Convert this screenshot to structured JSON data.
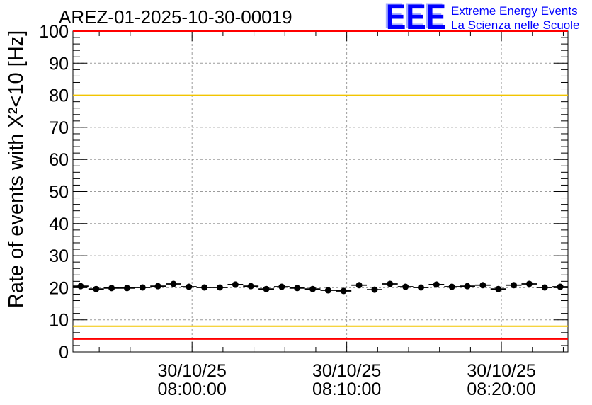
{
  "chart_data": {
    "type": "scatter",
    "title": "AREZ-01-2025-10-30-00019",
    "xlabel": "",
    "ylabel": "Rate of events with X²<10 [Hz]",
    "xlim": [
      -7.7,
      24.3
    ],
    "ylim": [
      0,
      100
    ],
    "grid": true,
    "xticks": [
      {
        "value": 0,
        "date": "30/10/25",
        "time": "08:00:00"
      },
      {
        "value": 10,
        "date": "30/10/25",
        "time": "08:10:00"
      },
      {
        "value": 20,
        "date": "30/10/25",
        "time": "08:20:00"
      }
    ],
    "yticks": [
      0,
      10,
      20,
      30,
      40,
      50,
      60,
      70,
      80,
      90,
      100
    ],
    "x": [
      -7.2,
      -6.2,
      -5.2,
      -4.2,
      -3.2,
      -2.2,
      -1.2,
      -0.2,
      0.8,
      1.8,
      2.8,
      3.8,
      4.8,
      5.8,
      6.8,
      7.8,
      8.8,
      9.8,
      10.8,
      11.8,
      12.8,
      13.8,
      14.8,
      15.8,
      16.8,
      17.8,
      18.8,
      19.8,
      20.8,
      21.8,
      22.8,
      23.8
    ],
    "y": [
      20.5,
      19.6,
      19.9,
      19.9,
      20.1,
      20.5,
      21.2,
      20.3,
      20.1,
      20.1,
      21.0,
      20.5,
      19.6,
      20.3,
      19.9,
      19.6,
      19.2,
      19.0,
      20.8,
      19.4,
      21.2,
      20.3,
      20.1,
      21.0,
      20.3,
      20.5,
      20.8,
      19.6,
      20.8,
      21.2,
      20.1,
      20.3
    ],
    "x_err": 0.5,
    "y_err": 0.6,
    "marker_color": "#000000",
    "reference_lines": [
      {
        "value": 100,
        "color": "#ff0000"
      },
      {
        "value": 80,
        "color": "#f2c500"
      },
      {
        "value": 8,
        "color": "#f2c500"
      },
      {
        "value": 4,
        "color": "#ff0000"
      }
    ]
  },
  "logo": {
    "mark": "EEE",
    "line1": "Extreme Energy Events",
    "line2": "La Scienza nelle Scuole",
    "color": "#0000ff"
  }
}
